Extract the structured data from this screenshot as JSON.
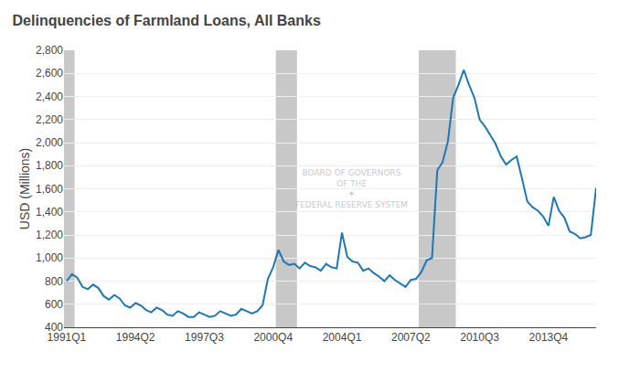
{
  "chart_data": {
    "type": "line",
    "title": "Delinquencies of Farmland Loans, All Banks",
    "y_label": "USD (Millions)",
    "categories": [
      "1991Q1",
      null,
      null,
      null,
      null,
      null,
      null,
      null,
      null,
      null,
      null,
      null,
      null,
      "1994Q2",
      null,
      null,
      null,
      null,
      null,
      null,
      null,
      null,
      null,
      null,
      null,
      null,
      "1997Q3",
      null,
      null,
      null,
      null,
      null,
      null,
      null,
      null,
      null,
      null,
      null,
      null,
      "2000Q4",
      null,
      null,
      null,
      null,
      null,
      null,
      null,
      null,
      null,
      null,
      null,
      null,
      "2004Q1",
      null,
      null,
      null,
      null,
      null,
      null,
      null,
      null,
      null,
      null,
      null,
      null,
      "2007Q2",
      null,
      null,
      null,
      null,
      null,
      null,
      null,
      null,
      null,
      null,
      null,
      null,
      "2010Q3",
      null,
      null,
      null,
      null,
      null,
      null,
      null,
      null,
      null,
      null,
      null,
      null,
      "2013Q4",
      null,
      null,
      null,
      null,
      null,
      null,
      null,
      null,
      null
    ],
    "values": [
      800,
      860,
      830,
      750,
      730,
      770,
      740,
      670,
      640,
      680,
      650,
      590,
      570,
      610,
      590,
      550,
      530,
      570,
      550,
      510,
      500,
      540,
      520,
      490,
      490,
      530,
      510,
      490,
      500,
      540,
      520,
      500,
      510,
      560,
      540,
      520,
      540,
      590,
      820,
      920,
      1070,
      970,
      940,
      950,
      910,
      960,
      930,
      920,
      890,
      950,
      920,
      910,
      1220,
      1010,
      970,
      960,
      890,
      910,
      870,
      840,
      800,
      850,
      810,
      780,
      750,
      810,
      820,
      880,
      980,
      1000,
      1760,
      1830,
      2010,
      2390,
      2500,
      2630,
      2500,
      2390,
      2200,
      2140,
      2070,
      1990,
      1880,
      1810,
      1850,
      1880,
      1690,
      1490,
      1440,
      1410,
      1360,
      1280,
      1530,
      1410,
      1350,
      1230,
      1210,
      1170,
      1180,
      1200,
      1610
    ],
    "shaded_ranges": [
      {
        "start": 0,
        "end": 1,
        "color": "#c8c8c8"
      },
      {
        "start": 40,
        "end": 43,
        "color": "#c8c8c8"
      },
      {
        "start": 67,
        "end": 73,
        "color": "#c8c8c8"
      }
    ],
    "annotations": [
      "BOARD OF GOVERNORS",
      "OF THE",
      "✦",
      "FEDERAL RESERVE SYSTEM"
    ],
    "ylim": [
      400,
      2800
    ],
    "yticks": [
      400,
      600,
      800,
      {
        "value": 1000,
        "label": "1,000"
      },
      {
        "value": 1200,
        "label": "1,200"
      },
      {
        "value": 1400,
        "label": "1,400"
      },
      {
        "value": 1600,
        "label": "1,600"
      },
      {
        "value": 1800,
        "label": "1,800"
      },
      {
        "value": 2000,
        "label": "2,000"
      },
      {
        "value": 2200,
        "label": "2,200"
      },
      {
        "value": 2400,
        "label": "2,400"
      },
      {
        "value": 2600,
        "label": "2,600"
      },
      {
        "value": 2800,
        "label": "2,800"
      }
    ],
    "grid": true
  }
}
